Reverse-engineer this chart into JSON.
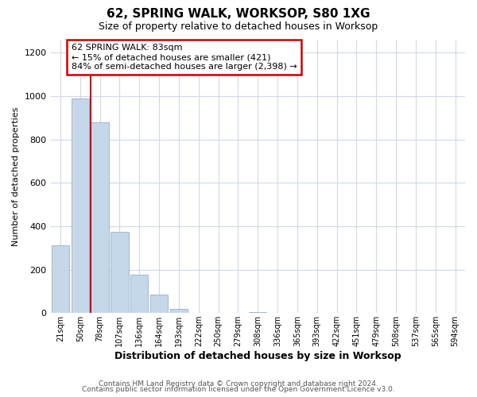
{
  "title": "62, SPRING WALK, WORKSOP, S80 1XG",
  "subtitle": "Size of property relative to detached houses in Worksop",
  "xlabel": "Distribution of detached houses by size in Worksop",
  "ylabel": "Number of detached properties",
  "bar_labels": [
    "21sqm",
    "50sqm",
    "78sqm",
    "107sqm",
    "136sqm",
    "164sqm",
    "193sqm",
    "222sqm",
    "250sqm",
    "279sqm",
    "308sqm",
    "336sqm",
    "365sqm",
    "393sqm",
    "422sqm",
    "451sqm",
    "479sqm",
    "508sqm",
    "537sqm",
    "565sqm",
    "594sqm"
  ],
  "bar_values": [
    310,
    990,
    880,
    375,
    175,
    85,
    20,
    0,
    0,
    0,
    5,
    0,
    0,
    0,
    0,
    0,
    0,
    0,
    0,
    0,
    0
  ],
  "bar_color": "#c5d8ea",
  "bar_edge_color": "#a0b8cc",
  "annotation_line1": "62 SPRING WALK: 83sqm",
  "annotation_line2": "← 15% of detached houses are smaller (421)",
  "annotation_line3": "84% of semi-detached houses are larger (2,398) →",
  "annotation_box_color": "#ffffff",
  "annotation_box_edge_color": "#cc0000",
  "vertical_line_color": "#cc0000",
  "vertical_line_bin": 2,
  "ylim": [
    0,
    1260
  ],
  "yticks": [
    0,
    200,
    400,
    600,
    800,
    1000,
    1200
  ],
  "footer_line1": "Contains HM Land Registry data © Crown copyright and database right 2024.",
  "footer_line2": "Contains public sector information licensed under the Open Government Licence v3.0.",
  "bg_color": "#ffffff",
  "grid_color": "#d0d8e8"
}
